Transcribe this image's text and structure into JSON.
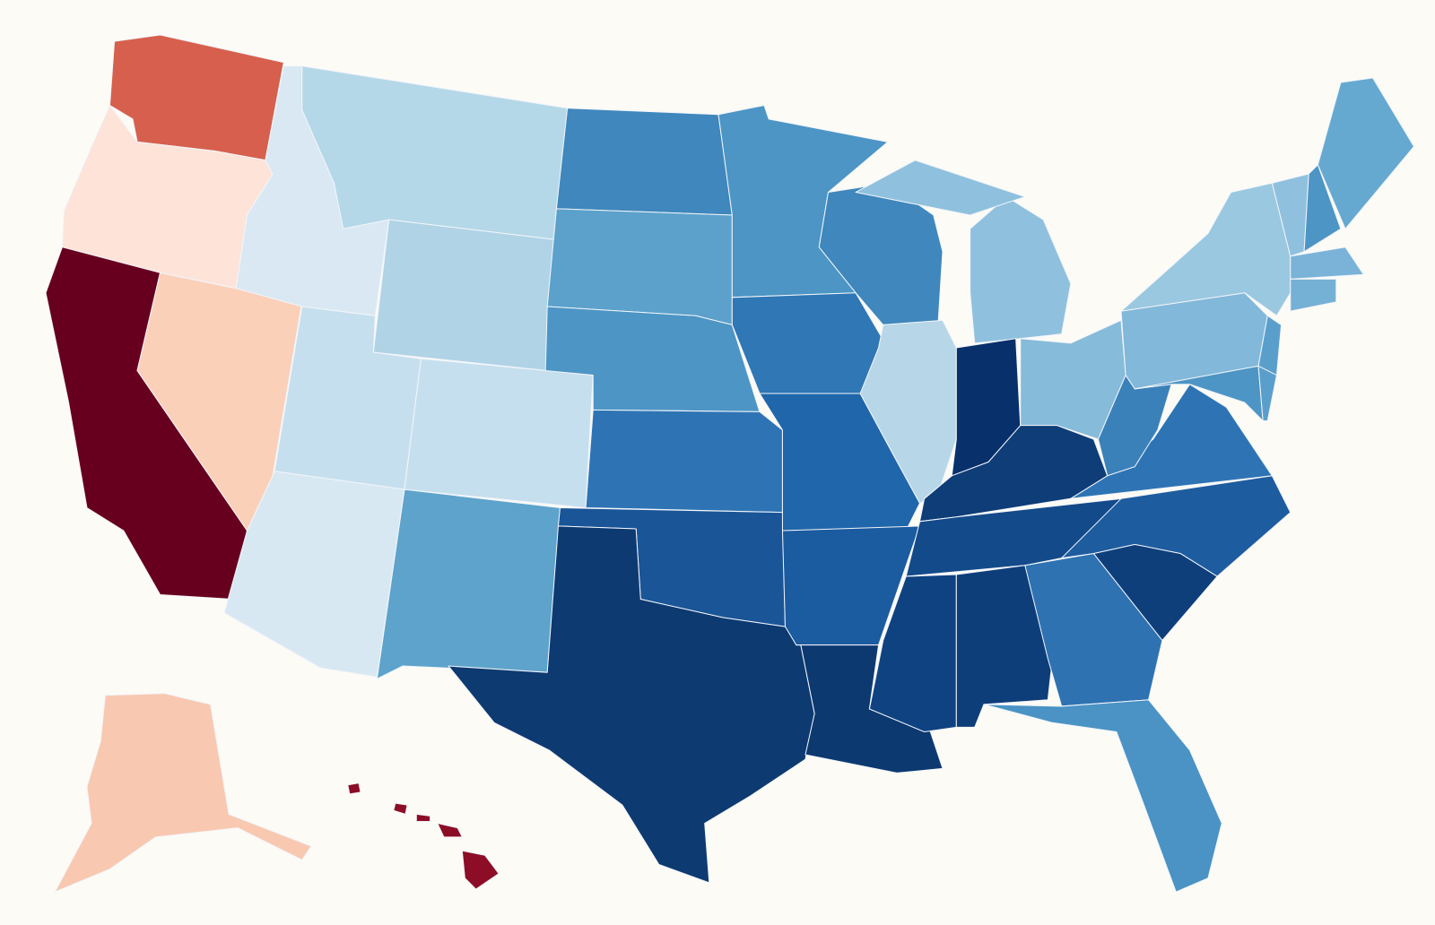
{
  "map": {
    "background": "#fdfbf6",
    "border_color": "#f2f5fa",
    "fills": {
      "WA": "#d6604d",
      "OR": "#fde3d8",
      "CA": "#67001f",
      "NV": "#fbd0b9",
      "ID": "#d9e8f2",
      "MT": "#b5d8e8",
      "WY": "#b0d3e6",
      "UT": "#c6dfee",
      "CO": "#c6dfee",
      "AZ": "#d8e8f2",
      "NM": "#5da3cb",
      "ND": "#3f87bc",
      "SD": "#5ca1cb",
      "NE": "#4d95c5",
      "KS": "#2e74b4",
      "OK": "#1a5597",
      "TX": "#0d3a71",
      "MN": "#4c95c5",
      "IA": "#2f77b5",
      "MO": "#2066aa",
      "AR": "#1b5ba0",
      "LA": "#0c3970",
      "WI": "#3f87bc",
      "IL": "#b7d7e8",
      "MI": "#8fc1de",
      "IN": "#08306b",
      "OH": "#86bbda",
      "KY": "#0e3d77",
      "TN": "#134a8a",
      "MS": "#0f4280",
      "AL": "#0e3e7a",
      "GA": "#2e72b2",
      "FL": "#4a93c4",
      "SC": "#0e3f7b",
      "NC": "#1d5c9f",
      "VA": "#2e74b4",
      "WV": "#3a81ba",
      "PA": "#82b8d9",
      "NY": "#9ac8e0",
      "NJ": "#5a9fcb",
      "MD": "#4d95c5",
      "DE": "#5a9fcb",
      "VT": "#8fc1de",
      "NH": "#4d95c5",
      "ME": "#65a9d1",
      "MA": "#7ab3d7",
      "CT": "#75b0d5",
      "AK": "#f9c8b0",
      "HI": "#8c0d25"
    }
  }
}
